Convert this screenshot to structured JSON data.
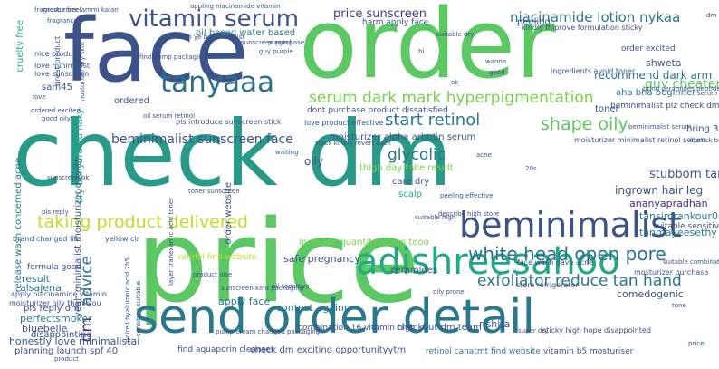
{
  "wordcloud": {
    "words": [
      {
        "text": "check dm",
        "color": "#2a9a88"
      },
      {
        "text": "price",
        "color": "#5cc863"
      },
      {
        "text": "face",
        "color": "#3b528b"
      },
      {
        "text": "order",
        "color": "#5cc863"
      },
      {
        "text": "send order detail",
        "color": "#2a788e"
      },
      {
        "text": "adishreesahoo",
        "color": "#22a884"
      },
      {
        "text": "beminimalist",
        "color": "#3b528b"
      },
      {
        "text": "vitamin serum",
        "color": "#3b528b"
      },
      {
        "text": "tanyaaa",
        "color": "#2a6f8e"
      },
      {
        "text": "serum dark mark hyperpigmentation",
        "color": "#7ad151"
      },
      {
        "text": "white head open pore",
        "color": "#2c728e"
      },
      {
        "text": "exfoliator reduce tan hand",
        "color": "#2a788e"
      },
      {
        "text": "taking product delivered",
        "color": "#bddf26"
      },
      {
        "text": "start retinol",
        "color": "#2a788e"
      },
      {
        "text": "shape oily",
        "color": "#5ec962"
      },
      {
        "text": "glycolic",
        "color": "#2a788e"
      },
      {
        "text": "niacinamide lotion nykaa",
        "color": "#2a788e"
      },
      {
        "text": "price sunscreen",
        "color": "#433e85"
      },
      {
        "text": "beminimalist sunscreen face",
        "color": "#3b528b"
      },
      {
        "text": "advice",
        "color": "#2a788e"
      },
      {
        "text": "dm",
        "color": "#482878"
      },
      {
        "text": "oil based water based",
        "color": "#2a788e"
      },
      {
        "text": "moisturizer alpha arbutin serum",
        "color": "#3b528b"
      },
      {
        "text": "increase quantity lotion tooo",
        "color": "#7ad151"
      },
      {
        "text": "recommend dark arm",
        "color": "#2c728e"
      },
      {
        "text": "order excited",
        "color": "#3b528b"
      },
      {
        "text": "guy cheater",
        "color": "#5cc863"
      },
      {
        "text": "aha bha beginner",
        "color": "#2a788e"
      },
      {
        "text": "stubborn tan",
        "color": "#3b528b"
      },
      {
        "text": "ingrown hair leg",
        "color": "#3b528b"
      },
      {
        "text": "ananyapradhan",
        "color": "#482878"
      },
      {
        "text": "tansimrankour05",
        "color": "#2a788e"
      },
      {
        "text": "suitable sensitive",
        "color": "#3b528b"
      },
      {
        "text": "tanmayeesethy",
        "color": "#2a788e"
      },
      {
        "text": "safe pregnancy",
        "color": "#3b528b"
      },
      {
        "text": "ceramides",
        "color": "#3b528b"
      },
      {
        "text": "care dry",
        "color": "#3b528b"
      },
      {
        "text": "thigh day take result",
        "color": "#7ad151"
      },
      {
        "text": "scalp",
        "color": "#22a884"
      },
      {
        "text": "apply face",
        "color": "#2a788e"
      },
      {
        "text": "contest againn",
        "color": "#2a788e"
      },
      {
        "text": "perfectsmoker",
        "color": "#2a788e"
      },
      {
        "text": "alsajena",
        "color": "#2a788e"
      },
      {
        "text": "bluebelle",
        "color": "#3b528b"
      },
      {
        "text": "honestly love minimalistai",
        "color": "#3b528b"
      },
      {
        "text": "planning launch spf 40",
        "color": "#3b528b"
      },
      {
        "text": "pls reply dm",
        "color": "#3b528b"
      },
      {
        "text": "disappointing",
        "color": "#3b528b"
      },
      {
        "text": "result",
        "color": "#2a788e"
      },
      {
        "text": "sam45",
        "color": "#3b528b"
      },
      {
        "text": "ordered",
        "color": "#3b528b"
      },
      {
        "text": "release wash concerned acne",
        "color": "#2a788e"
      },
      {
        "text": "yeah minimalist moisturizer quality",
        "color": "#3b528b"
      },
      {
        "text": "dry dehydrated flaky",
        "color": "#22a884"
      },
      {
        "text": "cruelty free",
        "color": "#22a884"
      },
      {
        "text": "peeling",
        "color": "#3b528b"
      },
      {
        "text": "shweta",
        "color": "#3b528b"
      },
      {
        "text": "toner",
        "color": "#3b528b"
      },
      {
        "text": "bring 30ml",
        "color": "#3b528b"
      },
      {
        "text": "oily",
        "color": "#3b528b"
      },
      {
        "text": "order website",
        "color": "#3b528b"
      },
      {
        "text": "comedogenic",
        "color": "#3b528b"
      },
      {
        "text": "rishita",
        "color": "#3b528b"
      },
      {
        "text": "checkout dm team",
        "color": "#3b528b"
      },
      {
        "text": "combination 16 vitamin high",
        "color": "#3b528b"
      },
      {
        "text": "check dm exciting opportunityytm",
        "color": "#3b528b"
      },
      {
        "text": "find aquaporin cleanser",
        "color": "#3b528b"
      },
      {
        "text": "retinol canatmt find website",
        "color": "#2a788e"
      },
      {
        "text": "vitamin b5 mosturiser",
        "color": "#3b528b"
      },
      {
        "text": "formula good",
        "color": "#3b528b"
      },
      {
        "text": "harm apply face",
        "color": "#3b528b"
      },
      {
        "text": "store refrigerator",
        "color": "#3b528b"
      },
      {
        "text": "beminimalist plz check dm",
        "color": "#3b528b"
      },
      {
        "text": "retinol find website",
        "color": "#bddf26"
      },
      {
        "text": "moisturizer minimalist retinol serum",
        "color": "#3b528b"
      },
      {
        "text": "kindly improve formulation sticky",
        "color": "#3b528b"
      },
      {
        "text": "face wash gave acne",
        "color": "#3b528b"
      },
      {
        "text": "ingredients avoid toner",
        "color": "#3b528b"
      },
      {
        "text": "mosturizer purchase",
        "color": "#3b528b"
      },
      {
        "text": "sticky high hope disappointed",
        "color": "#3b528b"
      },
      {
        "text": "brand changed life",
        "color": "#3b528b"
      },
      {
        "text": "yellow clr",
        "color": "#3b528b"
      },
      {
        "text": "apply niacinamide vitamin",
        "color": "#3b528b"
      },
      {
        "text": "moisturizer oily thankyou",
        "color": "#3b528b"
      },
      {
        "text": "sunscreen kind packaging",
        "color": "#3b528b"
      },
      {
        "text": "pump cream changed packaging",
        "color": "#3b528b"
      },
      {
        "text": "oil sensitive",
        "color": "#3b528b"
      },
      {
        "text": "love minimalist",
        "color": "#3b528b"
      },
      {
        "text": "nice product",
        "color": "#3b528b"
      },
      {
        "text": "dont purchase product dissatisfied",
        "color": "#3b528b"
      },
      {
        "text": "love product effective",
        "color": "#3b528b"
      },
      {
        "text": "stock kindly revert back",
        "color": "#3b528b"
      },
      {
        "text": "pls introduce sunscreen stick",
        "color": "#3b528b"
      },
      {
        "text": "oil serum retinol",
        "color": "#3b528b"
      },
      {
        "text": "good oily",
        "color": "#3b528b"
      },
      {
        "text": "ordered excited",
        "color": "#3b528b"
      },
      {
        "text": "love sunscreen",
        "color": "#3b528b"
      },
      {
        "text": "great product",
        "color": "#3b528b"
      },
      {
        "text": "mosturiser dry skin",
        "color": "#3b528b"
      },
      {
        "text": "paired hyaluronic acid 2b5",
        "color": "#3b528b"
      },
      {
        "text": "sensitive suitable",
        "color": "#3b528b"
      },
      {
        "text": "layer tranexamic acid toner",
        "color": "#3b528b"
      },
      {
        "text": "fragrance free",
        "color": "#3b528b"
      },
      {
        "text": "suitable dry",
        "color": "#3b528b"
      },
      {
        "text": "guy purple",
        "color": "#3b528b"
      },
      {
        "text": "find pump packaging tube",
        "color": "#3b528b"
      },
      {
        "text": "sunscreen purchase",
        "color": "#3b528b"
      },
      {
        "text": "mosturiser lammi kalan",
        "color": "#3b528b"
      },
      {
        "text": "appling niacinamide vitamin",
        "color": "#3b528b"
      },
      {
        "text": "amazon ye beminimalist",
        "color": "#3b528b"
      },
      {
        "text": "purging",
        "color": "#3b528b"
      },
      {
        "text": "bring ceramides peptide",
        "color": "#3b528b"
      },
      {
        "text": "beminimalist serum",
        "color": "#3b528b"
      },
      {
        "text": "love",
        "color": "#3b528b"
      },
      {
        "text": "lipstick bring",
        "color": "#3b528b"
      },
      {
        "text": "toner sunscreen",
        "color": "#3b528b"
      },
      {
        "text": "super dry",
        "color": "#3b528b"
      },
      {
        "text": "product aise",
        "color": "#3b528b"
      },
      {
        "text": "peeling effective",
        "color": "#3b528b"
      },
      {
        "text": "waiting",
        "color": "#3b528b"
      },
      {
        "text": "suitable high",
        "color": "#3b528b"
      },
      {
        "text": "oily prone",
        "color": "#3b528b"
      },
      {
        "text": "suitable combination",
        "color": "#3b528b"
      },
      {
        "text": "describe high store",
        "color": "#3b528b"
      },
      {
        "text": "20s",
        "color": "#3b528b"
      },
      {
        "text": "wanna",
        "color": "#3b528b"
      },
      {
        "text": "good",
        "color": "#3b528b"
      },
      {
        "text": "pls reply",
        "color": "#3b528b"
      },
      {
        "text": "sunscreen ok",
        "color": "#3b528b"
      },
      {
        "text": "fragrance",
        "color": "#3b528b"
      },
      {
        "text": "hi",
        "color": "#3b528b"
      },
      {
        "text": "dm",
        "color": "#3b528b"
      },
      {
        "text": "price",
        "color": "#3b528b"
      },
      {
        "text": "serum",
        "color": "#3b528b"
      },
      {
        "text": "tone",
        "color": "#3b528b"
      },
      {
        "text": "product",
        "color": "#3b528b"
      },
      {
        "text": "ok",
        "color": "#3b528b"
      },
      {
        "text": "acne",
        "color": "#3b528b"
      }
    ]
  }
}
